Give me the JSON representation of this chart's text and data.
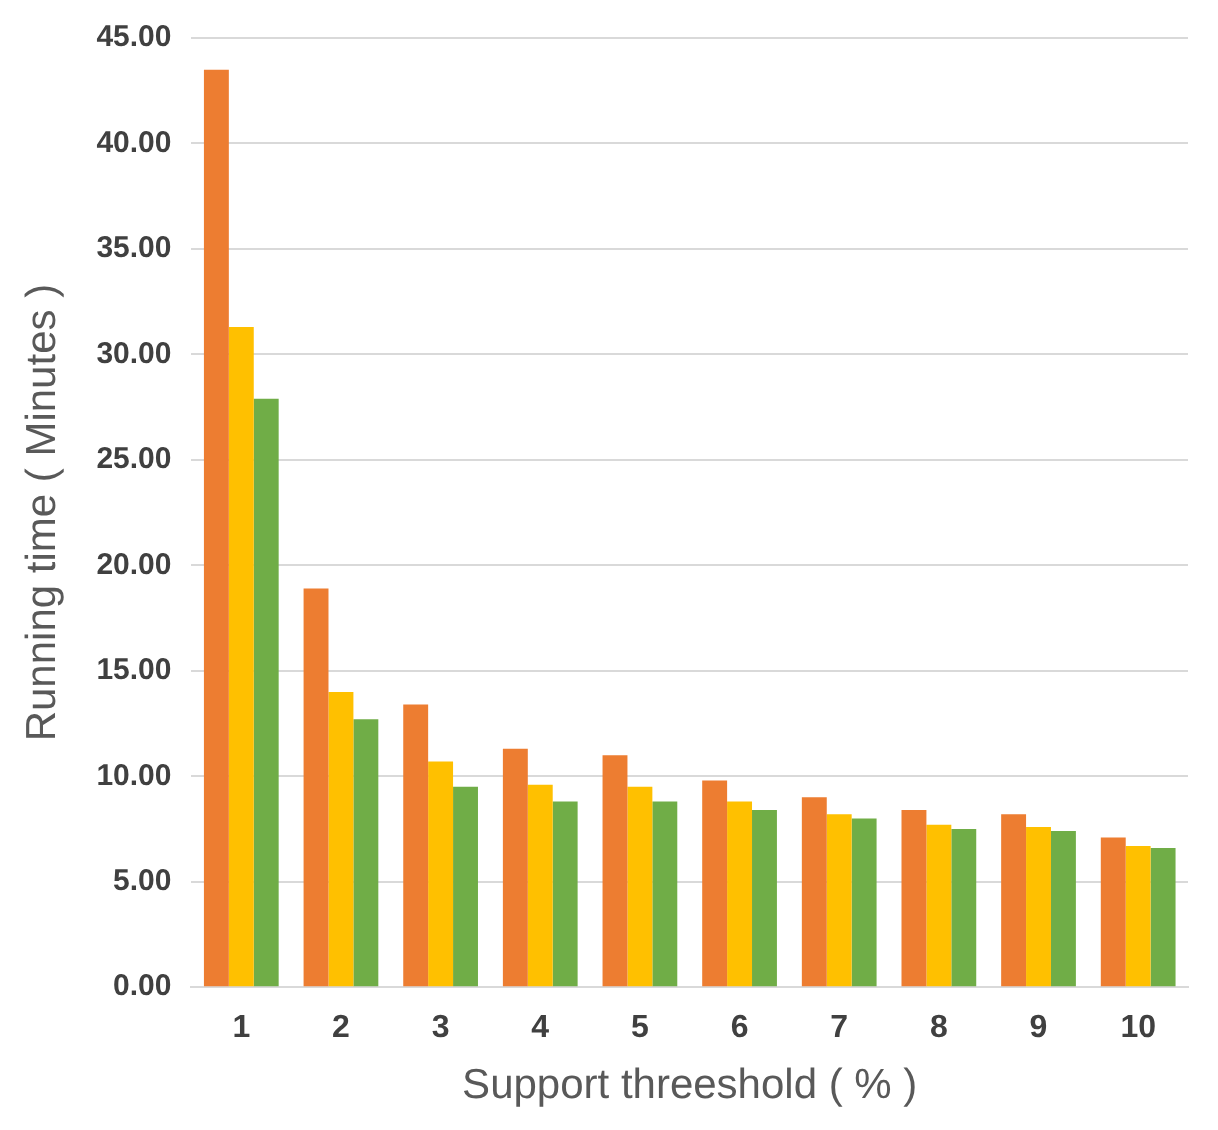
{
  "chart_data": {
    "type": "bar",
    "xlabel": "Support threeshold ( % )",
    "ylabel": "Running time ( Minutes )",
    "categories": [
      "1",
      "2",
      "3",
      "4",
      "5",
      "6",
      "7",
      "8",
      "9",
      "10"
    ],
    "series": [
      {
        "color": "#ed7d31",
        "values": [
          43.5,
          18.9,
          13.4,
          11.3,
          11.0,
          9.8,
          9.0,
          8.4,
          8.2,
          7.1
        ]
      },
      {
        "color": "#ffc000",
        "values": [
          31.3,
          14.0,
          10.7,
          9.6,
          9.5,
          8.8,
          8.2,
          7.7,
          7.6,
          6.7
        ]
      },
      {
        "color": "#70ad47",
        "values": [
          27.9,
          12.7,
          9.5,
          8.8,
          8.8,
          8.4,
          8.0,
          7.5,
          7.4,
          6.6
        ]
      }
    ],
    "ylim": [
      0,
      45
    ],
    "yticks": [
      {
        "value": 0,
        "label": "0.00"
      },
      {
        "value": 5,
        "label": "5.00"
      },
      {
        "value": 10,
        "label": "10.00"
      },
      {
        "value": 15,
        "label": "15.00"
      },
      {
        "value": 20,
        "label": "20.00"
      },
      {
        "value": 25,
        "label": "25.00"
      },
      {
        "value": 30,
        "label": "30.00"
      },
      {
        "value": 35,
        "label": "35.00"
      },
      {
        "value": 40,
        "label": "40.00"
      },
      {
        "value": 45,
        "label": "45.00"
      }
    ],
    "grid": "y",
    "legend": false
  }
}
